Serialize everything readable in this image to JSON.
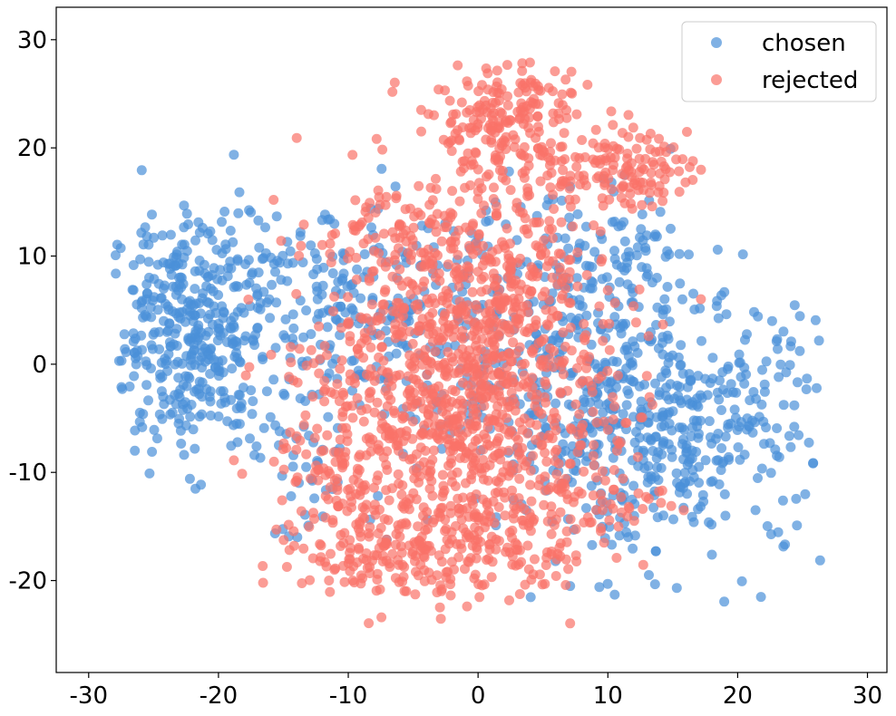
{
  "chart_data": {
    "type": "scatter",
    "title": "",
    "xlabel": "",
    "ylabel": "",
    "xlim": [
      -32.5,
      31.5
    ],
    "ylim": [
      -28.5,
      33
    ],
    "x_ticks": [
      -30,
      -20,
      -10,
      0,
      10,
      20,
      30
    ],
    "x_tick_labels": [
      "-30",
      "-20",
      "-10",
      "0",
      "10",
      "20",
      "30"
    ],
    "y_ticks": [
      -20,
      -10,
      0,
      10,
      20,
      30
    ],
    "y_tick_labels": [
      "-20",
      "-10",
      "0",
      "10",
      "20",
      "30"
    ],
    "grid": false,
    "legend_position": "top-right",
    "series": [
      {
        "name": "chosen",
        "color": "#4a90d9",
        "clusters": [
          {
            "cx": -22,
            "cy": 3,
            "sx": 3.2,
            "sy": 5.5,
            "n": 420
          },
          {
            "cx": 16,
            "cy": -6,
            "sx": 5.5,
            "sy": 6,
            "n": 380
          },
          {
            "cx": 8,
            "cy": -2,
            "sx": 5,
            "sy": 7,
            "n": 300
          },
          {
            "cx": -6,
            "cy": 4,
            "sx": 5,
            "sy": 5,
            "n": 200
          },
          {
            "cx": 10,
            "cy": 10,
            "sx": 4,
            "sy": 3,
            "n": 80
          },
          {
            "cx": -14,
            "cy": 7,
            "sx": 3,
            "sy": 4,
            "n": 60
          },
          {
            "cx": -13,
            "cy": -10,
            "sx": 2.5,
            "sy": 3,
            "n": 40
          }
        ]
      },
      {
        "name": "rejected",
        "color": "#fa7268",
        "clusters": [
          {
            "cx": -1,
            "cy": -3,
            "sx": 5.5,
            "sy": 7.5,
            "n": 900
          },
          {
            "cx": 2,
            "cy": 22,
            "sx": 3.5,
            "sy": 3,
            "n": 230
          },
          {
            "cx": 11,
            "cy": 18,
            "sx": 2.5,
            "sy": 1.6,
            "n": 120
          },
          {
            "cx": -3,
            "cy": -17,
            "sx": 5,
            "sy": 2.5,
            "n": 200
          },
          {
            "cx": -10,
            "cy": -10,
            "sx": 3,
            "sy": 6,
            "n": 140
          },
          {
            "cx": 1,
            "cy": 8,
            "sx": 4,
            "sy": 4,
            "n": 200
          },
          {
            "cx": -8,
            "cy": 12,
            "sx": 3,
            "sy": 2,
            "n": 60
          },
          {
            "cx": 8,
            "cy": -12,
            "sx": 3.5,
            "sy": 3.5,
            "n": 80
          }
        ]
      }
    ]
  }
}
